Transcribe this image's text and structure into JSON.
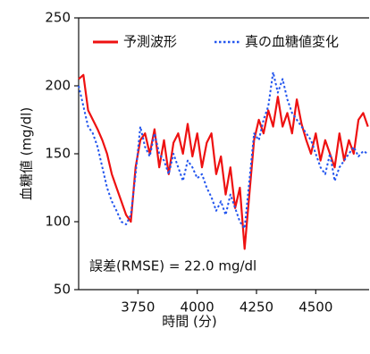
{
  "chart_data": {
    "type": "line",
    "xlabel": "時間 (分)",
    "ylabel": "血糖値 (mg/dl)",
    "annotation": "誤差(RMSE) = 22.0 mg/dl",
    "legend": "top",
    "x": [
      3500,
      3520,
      3540,
      3560,
      3580,
      3600,
      3620,
      3640,
      3660,
      3680,
      3700,
      3720,
      3740,
      3760,
      3780,
      3800,
      3820,
      3840,
      3860,
      3880,
      3900,
      3920,
      3940,
      3960,
      3980,
      4000,
      4020,
      4040,
      4060,
      4080,
      4100,
      4120,
      4140,
      4160,
      4180,
      4200,
      4220,
      4240,
      4260,
      4280,
      4300,
      4320,
      4340,
      4360,
      4380,
      4400,
      4420,
      4440,
      4460,
      4480,
      4500,
      4520,
      4540,
      4560,
      4580,
      4600,
      4620,
      4640,
      4660,
      4680,
      4700,
      4720
    ],
    "series": [
      {
        "name": "予測波形",
        "color": "#ee1111",
        "dash": false,
        "values": [
          205,
          208,
          182,
          175,
          168,
          160,
          150,
          135,
          125,
          115,
          105,
          100,
          140,
          160,
          165,
          150,
          168,
          140,
          160,
          135,
          158,
          165,
          150,
          172,
          148,
          165,
          140,
          158,
          165,
          135,
          148,
          120,
          140,
          110,
          125,
          80,
          120,
          160,
          175,
          165,
          182,
          170,
          192,
          170,
          180,
          165,
          190,
          172,
          160,
          150,
          165,
          145,
          160,
          150,
          140,
          165,
          145,
          160,
          150,
          175,
          180,
          170
        ]
      },
      {
        "name": "真の血糖値変化",
        "color": "#2255ee",
        "dash": true,
        "values": [
          200,
          185,
          170,
          165,
          155,
          140,
          125,
          115,
          108,
          100,
          98,
          105,
          135,
          170,
          155,
          148,
          165,
          150,
          145,
          135,
          150,
          140,
          130,
          145,
          140,
          132,
          135,
          125,
          118,
          108,
          115,
          105,
          120,
          110,
          100,
          95,
          130,
          165,
          160,
          175,
          185,
          210,
          195,
          205,
          190,
          180,
          175,
          170,
          165,
          160,
          150,
          140,
          135,
          150,
          130,
          140,
          145,
          150,
          155,
          148,
          152,
          150
        ]
      }
    ],
    "xlim": [
      3500,
      4725
    ],
    "xticks": [
      3750,
      4000,
      4250,
      4500
    ],
    "ylim": [
      50,
      250
    ],
    "yticks": [
      50,
      100,
      150,
      200,
      250
    ]
  }
}
